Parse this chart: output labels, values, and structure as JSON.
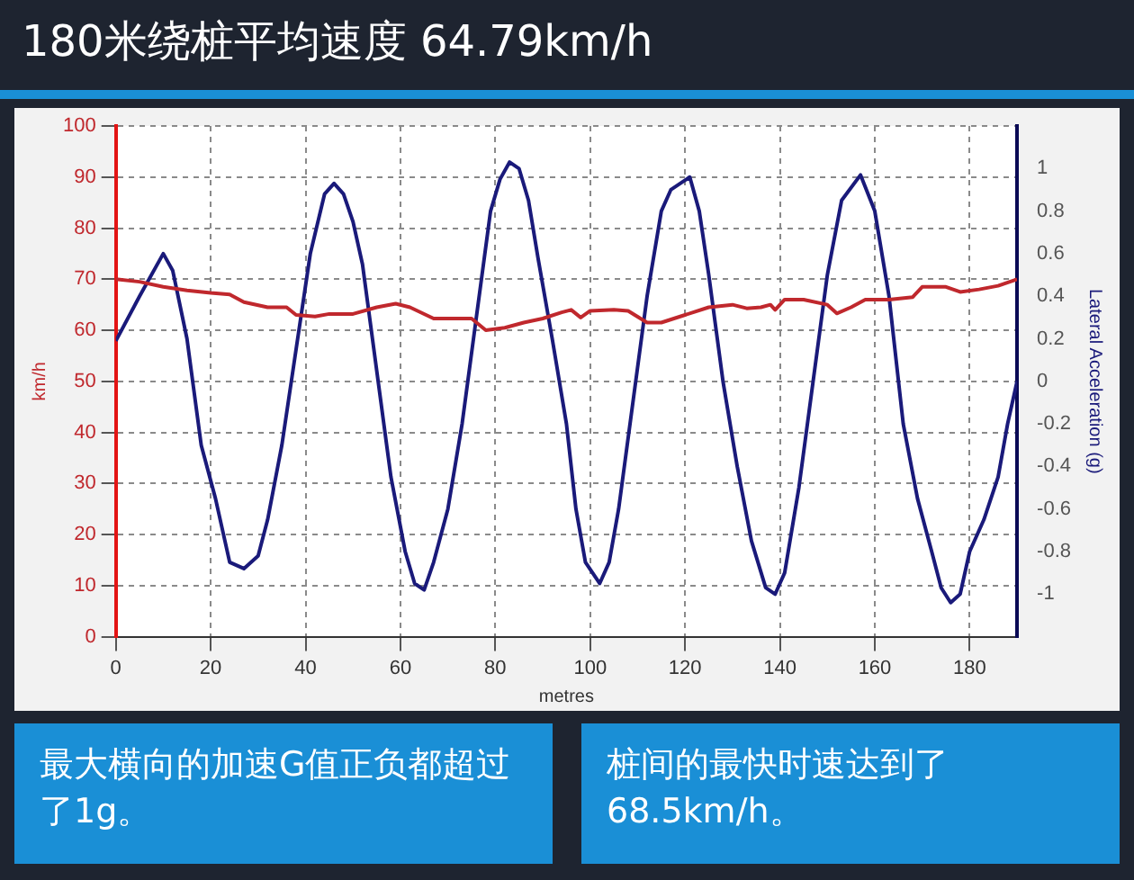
{
  "chart_data": {
    "type": "line",
    "title": "180米绕桩平均速度 64.79km/h",
    "xlabel": "metres",
    "ylabel": "km/h",
    "y2label": "Lateral Acceleration (g)",
    "xlim": [
      0,
      190
    ],
    "xticks": [
      0,
      20,
      40,
      60,
      80,
      100,
      120,
      140,
      160,
      180
    ],
    "ylim": [
      0,
      100
    ],
    "yticks": [
      0,
      10,
      20,
      30,
      40,
      50,
      60,
      70,
      80,
      90,
      100
    ],
    "y2lim": [
      -1.2,
      1.2
    ],
    "y2ticks": [
      -1,
      -0.8,
      -0.6,
      -0.4,
      -0.2,
      0,
      0.2,
      0.4,
      0.6,
      0.8,
      1
    ],
    "grid": true,
    "legend": false,
    "marker": "none",
    "line_style": "solid",
    "series": [
      {
        "color": "#c0282d",
        "x": [
          0,
          5,
          10,
          15,
          20,
          24,
          27,
          32,
          36,
          38,
          42,
          45,
          50,
          55,
          59,
          62,
          67,
          70,
          75,
          78,
          82,
          86,
          90,
          94,
          96,
          98,
          100,
          105,
          108,
          112,
          115,
          120,
          125,
          130,
          133,
          136,
          138,
          139,
          141,
          145,
          150,
          152,
          155,
          158,
          163,
          168,
          170,
          175,
          178,
          182,
          186,
          190
        ],
        "values": [
          70,
          69.5,
          68.5,
          67.8,
          67.3,
          67,
          65.5,
          64.5,
          64.5,
          63,
          62.7,
          63.2,
          63.2,
          64.5,
          65.2,
          64.5,
          62.3,
          62.3,
          62.3,
          60,
          60.5,
          61.5,
          62.3,
          63.5,
          64,
          62.5,
          63.8,
          64,
          63.8,
          61.5,
          61.5,
          63,
          64.5,
          65,
          64.3,
          64.5,
          65,
          64,
          66,
          66,
          65,
          63.3,
          64.5,
          66,
          66,
          66.5,
          68.5,
          68.5,
          67.5,
          68,
          68.7,
          70
        ]
      },
      {
        "color": "#1a1a7a",
        "axis": "y2",
        "x": [
          0,
          5,
          10,
          12,
          15,
          18,
          21,
          24,
          27,
          30,
          32,
          35,
          38,
          41,
          44,
          46,
          48,
          50,
          52,
          55,
          58,
          61,
          63,
          65,
          67,
          70,
          73,
          76,
          79,
          81,
          83,
          85,
          87,
          89,
          92,
          95,
          97,
          99,
          102,
          104,
          106,
          109,
          112,
          115,
          117,
          121,
          123,
          125,
          128,
          131,
          134,
          137,
          139,
          141,
          144,
          147,
          150,
          153,
          157,
          160,
          163,
          166,
          169,
          172,
          174,
          176,
          178,
          180,
          183,
          186,
          188,
          190
        ],
        "values": [
          0.19,
          0.4,
          0.6,
          0.52,
          0.2,
          -0.3,
          -0.55,
          -0.85,
          -0.88,
          -0.82,
          -0.65,
          -0.3,
          0.15,
          0.6,
          0.88,
          0.93,
          0.88,
          0.75,
          0.55,
          0.05,
          -0.45,
          -0.8,
          -0.95,
          -0.98,
          -0.85,
          -0.6,
          -0.2,
          0.3,
          0.8,
          0.95,
          1.03,
          1,
          0.85,
          0.58,
          0.2,
          -0.2,
          -0.6,
          -0.85,
          -0.95,
          -0.85,
          -0.6,
          -0.1,
          0.4,
          0.8,
          0.9,
          0.96,
          0.8,
          0.5,
          0,
          -0.4,
          -0.75,
          -0.97,
          -1,
          -0.9,
          -0.5,
          0,
          0.5,
          0.85,
          0.97,
          0.8,
          0.4,
          -0.2,
          -0.55,
          -0.8,
          -0.97,
          -1.04,
          -1,
          -0.8,
          -0.65,
          -0.45,
          -0.2,
          0
        ]
      }
    ],
    "annotations": [
      "最大横向的加速G值正负都超过了1g。",
      "桩间的最快时速达到了68.5km/h。"
    ]
  }
}
